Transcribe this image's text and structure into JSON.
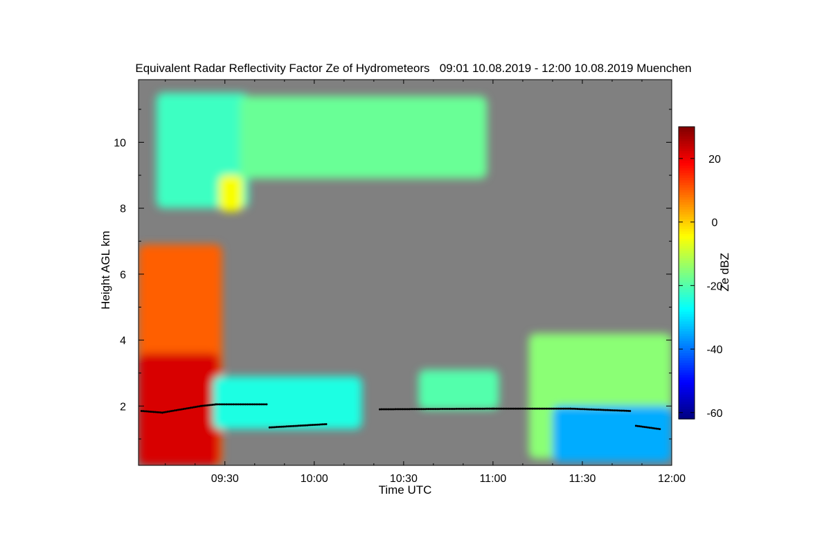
{
  "chart_data": {
    "type": "heatmap",
    "title": "Equivalent Radar Reflectivity Factor Ze of Hydrometeors   09:01 10.08.2019 - 12:00 10.08.2019 Muenchen",
    "xlabel": "Time UTC",
    "ylabel": "Height AGL km",
    "colorbar_label": "Ze dBZ",
    "x_range_minutes": [
      541,
      720
    ],
    "y_range_km": [
      0.2,
      11.9
    ],
    "x_ticks": [
      {
        "value": 570,
        "label": "09:30"
      },
      {
        "value": 600,
        "label": "10:00"
      },
      {
        "value": 630,
        "label": "10:30"
      },
      {
        "value": 660,
        "label": "11:00"
      },
      {
        "value": 690,
        "label": "11:30"
      },
      {
        "value": 720,
        "label": "12:00"
      }
    ],
    "y_ticks": [
      {
        "value": 2,
        "label": "2"
      },
      {
        "value": 4,
        "label": "4"
      },
      {
        "value": 6,
        "label": "6"
      },
      {
        "value": 8,
        "label": "8"
      },
      {
        "value": 10,
        "label": "10"
      }
    ],
    "colorbar_range_dbz": [
      -62,
      30
    ],
    "colorbar_ticks": [
      {
        "value": 20,
        "label": "20"
      },
      {
        "value": 0,
        "label": "0"
      },
      {
        "value": -20,
        "label": "-20"
      },
      {
        "value": -40,
        "label": "-40"
      },
      {
        "value": -60,
        "label": "-60"
      }
    ],
    "colormap": "jet",
    "background_color": "#808080",
    "ceilometer_color": "#000000",
    "echo_regions": [
      {
        "t0": 547,
        "t1": 578,
        "h0": 8.0,
        "h1": 11.5,
        "ze": -22
      },
      {
        "t0": 575,
        "t1": 658,
        "h0": 8.9,
        "h1": 11.4,
        "ze": -18
      },
      {
        "t0": 568,
        "t1": 576,
        "h0": 7.9,
        "h1": 9.0,
        "ze": -5
      },
      {
        "t0": 541,
        "t1": 569,
        "h0": 0.2,
        "h1": 6.9,
        "ze": 10
      },
      {
        "t0": 541,
        "t1": 568,
        "h0": 0.2,
        "h1": 3.6,
        "ze": 22
      },
      {
        "t0": 566,
        "t1": 616,
        "h0": 1.3,
        "h1": 2.9,
        "ze": -25
      },
      {
        "t0": 635,
        "t1": 662,
        "h0": 1.9,
        "h1": 3.1,
        "ze": -20
      },
      {
        "t0": 672,
        "t1": 720,
        "h0": 0.4,
        "h1": 4.2,
        "ze": -15
      },
      {
        "t0": 680,
        "t1": 720,
        "h0": 0.3,
        "h1": 2.0,
        "ze": -35
      }
    ],
    "ceilometer_cloud_base": [
      {
        "t": 542,
        "h": 1.85
      },
      {
        "t": 549,
        "h": 1.8
      },
      {
        "t": 562,
        "h": 2.0
      },
      {
        "t": 567,
        "h": 2.05
      },
      {
        "t": 584,
        "h": 2.05
      },
      {
        "t": 585,
        "h": 1.35
      },
      {
        "t": 604,
        "h": 1.45
      },
      {
        "t": 622,
        "h": 1.9
      },
      {
        "t": 660,
        "h": 1.92
      },
      {
        "t": 686,
        "h": 1.92
      },
      {
        "t": 706,
        "h": 1.85
      },
      {
        "t": 708,
        "h": 1.4
      },
      {
        "t": 716,
        "h": 1.3
      }
    ]
  }
}
